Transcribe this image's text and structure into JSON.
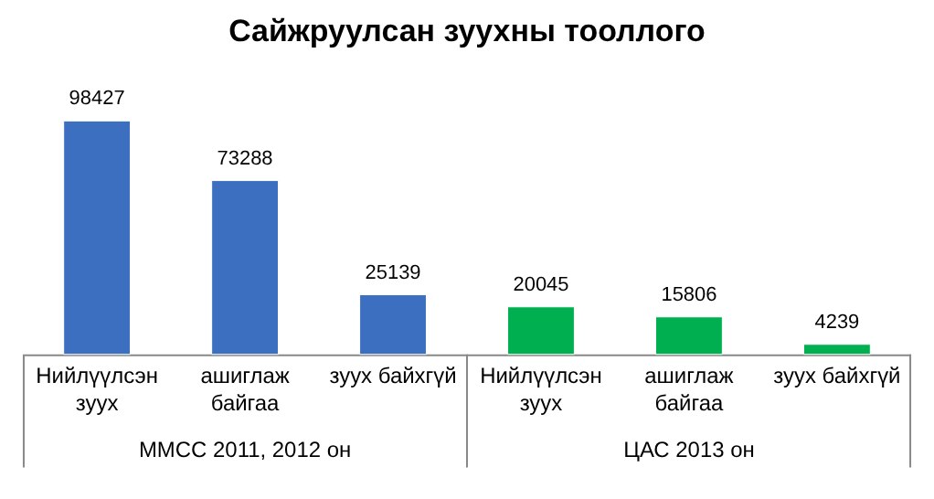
{
  "chart_data": {
    "type": "bar",
    "title": "Сайжруулсан зуухны тооллого",
    "categories": [
      "Нийлүүлсэн\nзуух",
      "ашиглаж\nбайгаа",
      "зуух байхгүй",
      "Нийлүүлсэн\nзуух",
      "ашиглаж\nбайгаа",
      "зуух байхгүй"
    ],
    "values": [
      98427,
      73288,
      25139,
      20045,
      15806,
      4239
    ],
    "colors": [
      "#3c6fbf",
      "#3c6fbf",
      "#3c6fbf",
      "#00b050",
      "#00b050",
      "#00b050"
    ],
    "annotations": [
      "ММСС 2011, 2012 он",
      "ЦАС 2013 он"
    ],
    "data_labels": true
  }
}
